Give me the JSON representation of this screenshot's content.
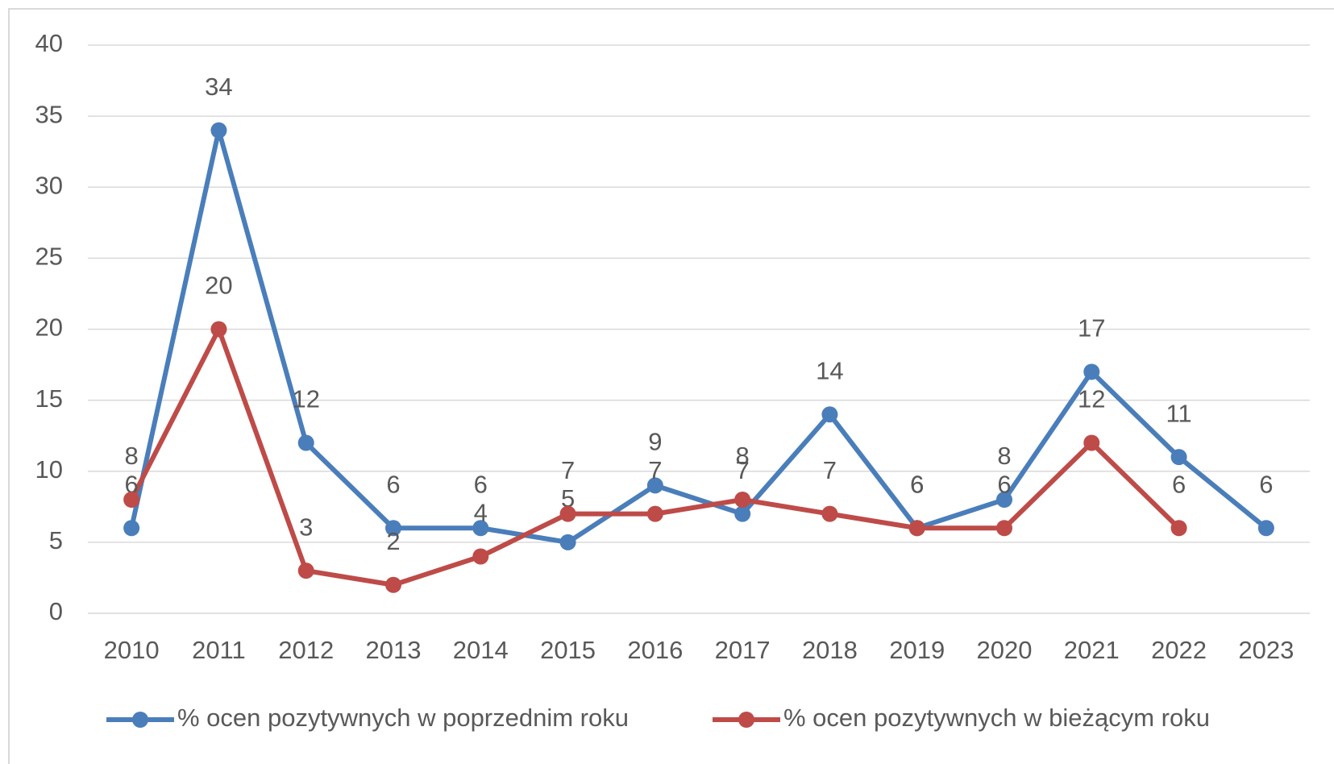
{
  "chart_data": {
    "type": "line",
    "categories": [
      "2010",
      "2011",
      "2012",
      "2013",
      "2014",
      "2015",
      "2016",
      "2017",
      "2018",
      "2019",
      "2020",
      "2021",
      "2022",
      "2023"
    ],
    "series": [
      {
        "name": "% ocen pozytywnych w poprzednim roku",
        "color": "#4a7ebb",
        "values": [
          6,
          34,
          12,
          6,
          6,
          5,
          9,
          7,
          14,
          6,
          8,
          17,
          11,
          6
        ]
      },
      {
        "name": "% ocen pozytywnych w bieżącym roku",
        "color": "#be4b48",
        "values": [
          8,
          20,
          3,
          2,
          4,
          7,
          7,
          8,
          7,
          6,
          6,
          12,
          6,
          null
        ]
      }
    ],
    "ylim": [
      0,
      40
    ],
    "yticks": [
      0,
      5,
      10,
      15,
      20,
      25,
      30,
      35,
      40
    ],
    "grid": true,
    "legend": "bottom"
  }
}
